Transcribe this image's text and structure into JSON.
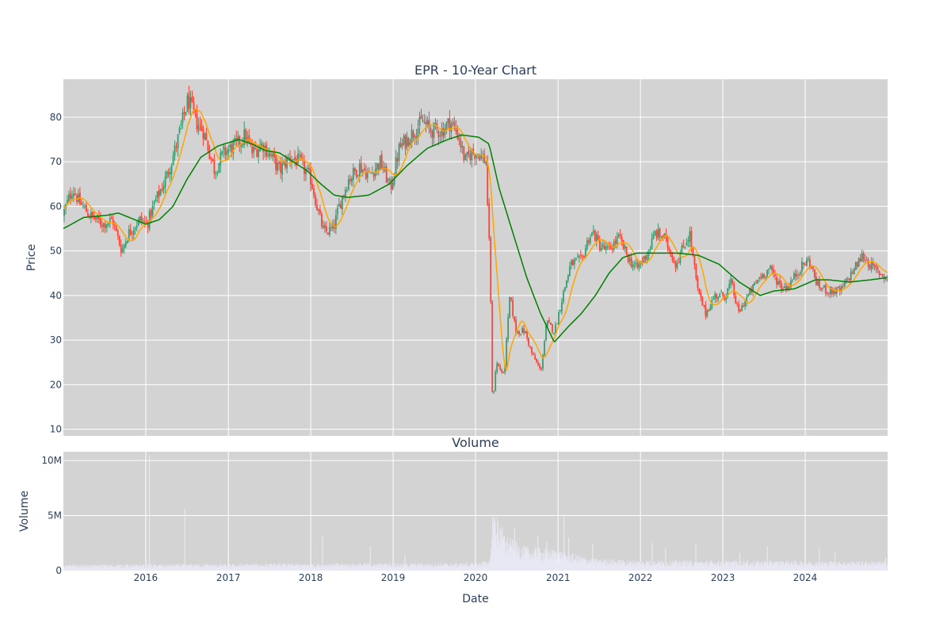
{
  "chart_data": [
    {
      "type": "candlestick",
      "title": "EPR - 10-Year Chart",
      "xlabel": "",
      "ylabel": "Price",
      "ylim": [
        8.5,
        88.5
      ],
      "xlim": [
        "2015-01-01",
        "2024-12-31"
      ],
      "yticks": [
        10,
        20,
        30,
        40,
        50,
        60,
        70,
        80
      ],
      "grid": true,
      "legend": "none",
      "colors": {
        "up": "#3d9970",
        "down": "#ff4136",
        "short_ma": "#ffa500",
        "long_ma": "#008000",
        "background": "#d3d3d3",
        "grid": "#ffffff"
      },
      "price_path": [
        [
          "2015-01-01",
          58
        ],
        [
          "2015-02-15",
          64
        ],
        [
          "2015-03-15",
          61
        ],
        [
          "2015-05-01",
          58
        ],
        [
          "2015-07-01",
          56
        ],
        [
          "2015-08-10",
          57
        ],
        [
          "2015-09-20",
          50
        ],
        [
          "2015-10-20",
          54
        ],
        [
          "2015-12-10",
          57
        ],
        [
          "2016-01-10",
          56
        ],
        [
          "2016-02-15",
          61
        ],
        [
          "2016-04-01",
          66
        ],
        [
          "2016-05-15",
          73
        ],
        [
          "2016-06-20",
          80
        ],
        [
          "2016-07-10",
          84
        ],
        [
          "2016-08-15",
          79
        ],
        [
          "2016-09-15",
          77
        ],
        [
          "2016-11-05",
          68
        ],
        [
          "2016-12-15",
          72
        ],
        [
          "2017-02-15",
          74
        ],
        [
          "2017-03-20",
          76
        ],
        [
          "2017-04-20",
          72
        ],
        [
          "2017-06-05",
          74
        ],
        [
          "2017-07-15",
          71
        ],
        [
          "2017-08-20",
          68
        ],
        [
          "2017-10-01",
          71
        ],
        [
          "2017-11-15",
          70
        ],
        [
          "2018-01-05",
          66
        ],
        [
          "2018-02-10",
          58
        ],
        [
          "2018-03-05",
          54
        ],
        [
          "2018-04-15",
          55
        ],
        [
          "2018-05-10",
          60
        ],
        [
          "2018-06-20",
          66
        ],
        [
          "2018-08-10",
          69
        ],
        [
          "2018-09-20",
          67
        ],
        [
          "2018-11-10",
          70
        ],
        [
          "2018-12-24",
          64
        ],
        [
          "2019-02-01",
          73
        ],
        [
          "2019-04-10",
          77
        ],
        [
          "2019-05-15",
          79
        ],
        [
          "2019-06-20",
          77
        ],
        [
          "2019-08-10",
          77
        ],
        [
          "2019-09-15",
          79
        ],
        [
          "2019-10-20",
          76
        ],
        [
          "2019-11-20",
          70
        ],
        [
          "2019-12-15",
          72
        ],
        [
          "2020-01-20",
          72
        ],
        [
          "2020-02-20",
          70
        ],
        [
          "2020-03-10",
          45
        ],
        [
          "2020-03-20",
          15
        ],
        [
          "2020-04-05",
          25
        ],
        [
          "2020-05-10",
          22
        ],
        [
          "2020-06-05",
          40
        ],
        [
          "2020-07-01",
          32
        ],
        [
          "2020-08-10",
          32
        ],
        [
          "2020-09-10",
          27
        ],
        [
          "2020-10-20",
          23
        ],
        [
          "2020-11-15",
          34
        ],
        [
          "2020-12-20",
          32
        ],
        [
          "2021-01-25",
          40
        ],
        [
          "2021-03-01",
          47
        ],
        [
          "2021-04-20",
          48
        ],
        [
          "2021-05-20",
          53
        ],
        [
          "2021-06-10",
          54
        ],
        [
          "2021-07-10",
          51
        ],
        [
          "2021-08-15",
          50
        ],
        [
          "2021-10-01",
          53
        ],
        [
          "2021-11-15",
          48
        ],
        [
          "2021-12-20",
          46
        ],
        [
          "2022-02-10",
          50
        ],
        [
          "2022-03-10",
          54
        ],
        [
          "2022-04-20",
          53
        ],
        [
          "2022-06-10",
          47
        ],
        [
          "2022-08-10",
          54
        ],
        [
          "2022-09-15",
          41
        ],
        [
          "2022-10-20",
          36
        ],
        [
          "2022-12-01",
          40
        ],
        [
          "2023-01-15",
          40
        ],
        [
          "2023-02-10",
          43
        ],
        [
          "2023-03-15",
          36
        ],
        [
          "2023-04-15",
          39
        ],
        [
          "2023-06-15",
          44
        ],
        [
          "2023-07-30",
          46
        ],
        [
          "2023-09-20",
          42
        ],
        [
          "2023-10-20",
          42
        ],
        [
          "2023-12-10",
          46
        ],
        [
          "2024-01-20",
          48
        ],
        [
          "2024-03-01",
          42
        ],
        [
          "2024-04-20",
          41
        ],
        [
          "2024-06-10",
          41
        ],
        [
          "2024-07-15",
          44
        ],
        [
          "2024-09-15",
          49
        ],
        [
          "2024-11-01",
          46
        ],
        [
          "2024-12-31",
          44
        ]
      ],
      "ma_long": [
        [
          "2015-01-01",
          55
        ],
        [
          "2015-04-01",
          57.5
        ],
        [
          "2015-07-15",
          58
        ],
        [
          "2015-09-01",
          58.5
        ],
        [
          "2016-01-01",
          56
        ],
        [
          "2016-03-01",
          57
        ],
        [
          "2016-05-01",
          60
        ],
        [
          "2016-07-01",
          66
        ],
        [
          "2016-09-01",
          71
        ],
        [
          "2016-11-15",
          73.5
        ],
        [
          "2017-02-15",
          75
        ],
        [
          "2017-04-15",
          74
        ],
        [
          "2017-06-15",
          72.5
        ],
        [
          "2017-08-15",
          72
        ],
        [
          "2017-10-15",
          70
        ],
        [
          "2017-12-15",
          68
        ],
        [
          "2018-02-15",
          65
        ],
        [
          "2018-04-15",
          62.5
        ],
        [
          "2018-06-15",
          62
        ],
        [
          "2018-09-15",
          62.5
        ],
        [
          "2018-12-15",
          65
        ],
        [
          "2019-03-01",
          69
        ],
        [
          "2019-06-01",
          73
        ],
        [
          "2019-09-01",
          75
        ],
        [
          "2019-11-01",
          76
        ],
        [
          "2020-01-15",
          75.5
        ],
        [
          "2020-03-01",
          74
        ],
        [
          "2020-04-15",
          64
        ],
        [
          "2020-06-15",
          54
        ],
        [
          "2020-08-15",
          44
        ],
        [
          "2020-10-15",
          36
        ],
        [
          "2020-12-15",
          29.5
        ],
        [
          "2021-02-15",
          33
        ],
        [
          "2021-04-15",
          36
        ],
        [
          "2021-06-15",
          40
        ],
        [
          "2021-08-15",
          45
        ],
        [
          "2021-10-15",
          48.5
        ],
        [
          "2021-12-15",
          49.5
        ],
        [
          "2022-03-15",
          49.5
        ],
        [
          "2022-06-15",
          49.5
        ],
        [
          "2022-09-15",
          49
        ],
        [
          "2022-12-15",
          47
        ],
        [
          "2023-03-15",
          43
        ],
        [
          "2023-06-15",
          40
        ],
        [
          "2023-08-15",
          41
        ],
        [
          "2023-11-15",
          41.5
        ],
        [
          "2024-02-15",
          43.5
        ],
        [
          "2024-04-15",
          43.5
        ],
        [
          "2024-07-15",
          43
        ],
        [
          "2024-10-15",
          43.5
        ],
        [
          "2024-12-31",
          44
        ]
      ]
    },
    {
      "type": "bar",
      "title": "Volume",
      "xlabel": "Date",
      "ylabel": "Volume",
      "ylim": [
        0,
        10800000
      ],
      "yticks": [
        {
          "value": 0,
          "label": "0"
        },
        {
          "value": 5000000,
          "label": "5M"
        },
        {
          "value": 10000000,
          "label": "10M"
        }
      ],
      "xticks": [
        "2016",
        "2017",
        "2018",
        "2019",
        "2020",
        "2021",
        "2022",
        "2023",
        "2024"
      ],
      "grid": true,
      "colors": {
        "bars": "#e8e8f4",
        "background": "#d3d3d3",
        "grid": "#ffffff"
      },
      "baseline_profile": [
        [
          "2015-01-01",
          350000
        ],
        [
          "2019-12-31",
          450000
        ],
        [
          "2020-03-01",
          600000
        ],
        [
          "2020-03-25",
          3500000
        ],
        [
          "2020-05-15",
          2000000
        ],
        [
          "2020-08-01",
          1400000
        ],
        [
          "2021-01-01",
          1200000
        ],
        [
          "2021-06-01",
          700000
        ],
        [
          "2022-01-01",
          600000
        ],
        [
          "2024-12-31",
          550000
        ]
      ],
      "spikes": [
        [
          "2016-01-15",
          10500000
        ],
        [
          "2016-06-20",
          5600000
        ],
        [
          "2018-02-20",
          3200000
        ],
        [
          "2018-09-20",
          2200000
        ],
        [
          "2019-02-20",
          1400000
        ],
        [
          "2020-03-15",
          5000000
        ],
        [
          "2020-04-20",
          3700000
        ],
        [
          "2020-06-20",
          3900000
        ],
        [
          "2020-10-01",
          3100000
        ],
        [
          "2020-11-10",
          2600000
        ],
        [
          "2021-01-25",
          5100000
        ],
        [
          "2021-02-15",
          3000000
        ],
        [
          "2021-06-01",
          2400000
        ],
        [
          "2022-02-20",
          2500000
        ],
        [
          "2022-04-20",
          2000000
        ],
        [
          "2022-09-01",
          2400000
        ],
        [
          "2023-03-15",
          1600000
        ],
        [
          "2023-07-15",
          2200000
        ],
        [
          "2024-03-01",
          2000000
        ],
        [
          "2024-05-10",
          1600000
        ],
        [
          "2024-12-20",
          1200000
        ]
      ]
    }
  ]
}
